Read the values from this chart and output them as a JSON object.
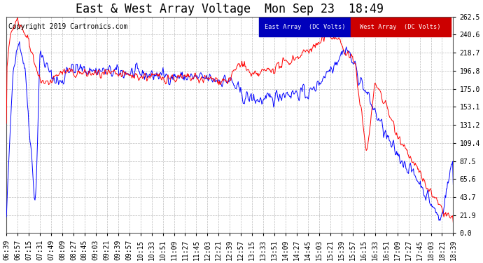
{
  "title": "East & West Array Voltage  Mon Sep 23  18:49",
  "copyright": "Copyright 2019 Cartronics.com",
  "legend_east": "East Array  (DC Volts)",
  "legend_west": "West Array  (DC Volts)",
  "east_color": "#0000ff",
  "west_color": "#ff0000",
  "legend_east_bg": "#0000bb",
  "legend_west_bg": "#cc0000",
  "bg_color": "#ffffff",
  "plot_bg": "#ffffff",
  "grid_color": "#aaaaaa",
  "yticks": [
    0.0,
    21.9,
    43.7,
    65.6,
    87.5,
    109.4,
    131.2,
    153.1,
    175.0,
    196.8,
    218.7,
    240.6,
    262.5
  ],
  "ymin": 0.0,
  "ymax": 262.5,
  "xtick_labels": [
    "06:39",
    "06:57",
    "07:15",
    "07:31",
    "07:49",
    "08:09",
    "08:27",
    "08:45",
    "09:03",
    "09:21",
    "09:39",
    "09:57",
    "10:15",
    "10:33",
    "10:51",
    "11:09",
    "11:27",
    "11:45",
    "12:03",
    "12:21",
    "12:39",
    "12:57",
    "13:15",
    "13:33",
    "13:51",
    "14:09",
    "14:27",
    "14:45",
    "15:03",
    "15:21",
    "15:39",
    "15:57",
    "16:15",
    "16:33",
    "16:51",
    "17:09",
    "17:27",
    "17:45",
    "18:03",
    "18:21",
    "18:39"
  ],
  "title_fontsize": 12,
  "axis_fontsize": 7,
  "copyright_fontsize": 7
}
